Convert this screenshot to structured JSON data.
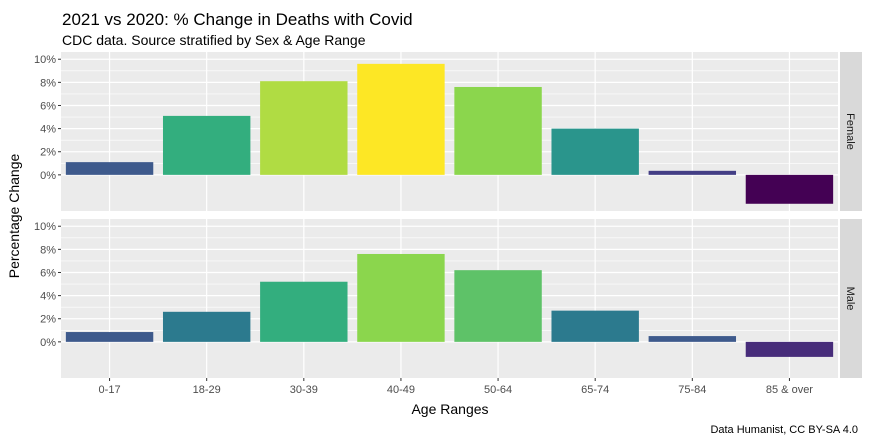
{
  "chart_data": {
    "type": "bar",
    "title": "2021 vs 2020: % Change in Deaths with Covid",
    "subtitle": "CDC data. Source stratified by Sex & Age Range",
    "xlabel": "Age Ranges",
    "ylabel": "Percentage Change",
    "caption": "Data Humanist, CC BY-SA 4.0",
    "categories": [
      "0-17",
      "18-29",
      "30-39",
      "40-49",
      "50-64",
      "65-74",
      "75-84",
      "85 & over"
    ],
    "y_ticks": [
      "0%",
      "2%",
      "4%",
      "6%",
      "8%",
      "10%"
    ],
    "y_tick_values": [
      0,
      2,
      4,
      6,
      8,
      10
    ],
    "ylim": [
      -2.5,
      10
    ],
    "grid": true,
    "facet": "rows",
    "panels": [
      {
        "name": "Female",
        "values": [
          1.1,
          5.1,
          8.1,
          9.6,
          7.6,
          4.0,
          0.35,
          -2.5
        ],
        "colors": [
          "#3e5a8c",
          "#33ae7e",
          "#b0dc43",
          "#fde725",
          "#8bd64d",
          "#2a958c",
          "#433e85",
          "#440154"
        ]
      },
      {
        "name": "Male",
        "values": [
          0.85,
          2.6,
          5.2,
          7.6,
          6.2,
          2.7,
          0.5,
          -1.3
        ],
        "colors": [
          "#3e5a8c",
          "#2c7a8e",
          "#33ae7e",
          "#8bd64d",
          "#5ec268",
          "#2c7a8e",
          "#3e5a8c",
          "#472c7a"
        ]
      }
    ]
  }
}
